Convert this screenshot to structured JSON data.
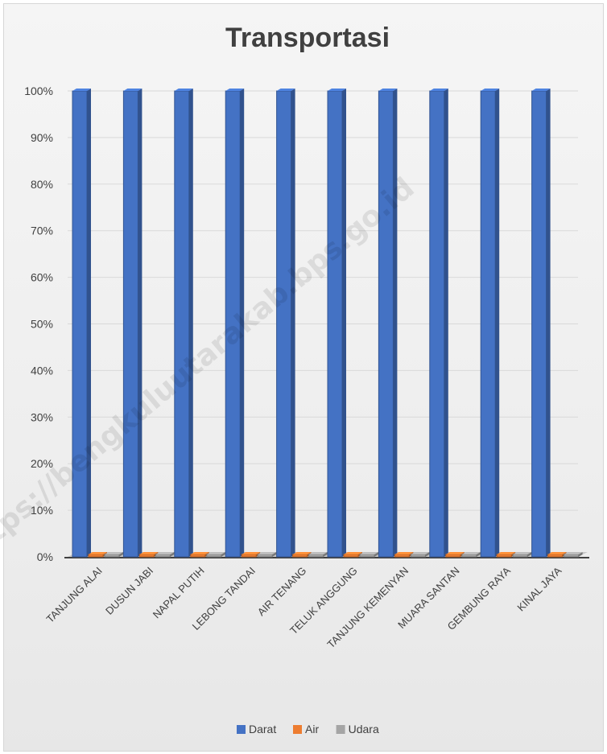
{
  "chart_data": {
    "type": "bar",
    "title": "Transportasi",
    "xlabel": "",
    "ylabel": "",
    "ylim": [
      0,
      100
    ],
    "y_ticks": [
      "0%",
      "10%",
      "20%",
      "30%",
      "40%",
      "50%",
      "60%",
      "70%",
      "80%",
      "90%",
      "100%"
    ],
    "categories": [
      "TANJUNG ALAI",
      "DUSUN JABI",
      "NAPAL PUTIH",
      "LEBONG TANDAI",
      "AIR TENANG",
      "TELUK ANGGUNG",
      "TANJUNG KEMENYAN",
      "MUARA SANTAN",
      "GEMBUNG RAYA",
      "KINAL JAYA"
    ],
    "series": [
      {
        "name": "Darat",
        "color": "#4472c4",
        "values": [
          100,
          100,
          100,
          100,
          100,
          100,
          100,
          100,
          100,
          100
        ]
      },
      {
        "name": "Air",
        "color": "#ed7d31",
        "values": [
          0,
          0,
          0,
          0,
          0,
          0,
          0,
          0,
          0,
          0
        ]
      },
      {
        "name": "Udara",
        "color": "#a5a5a5",
        "values": [
          0,
          0,
          0,
          0,
          0,
          0,
          0,
          0,
          0,
          0
        ]
      }
    ],
    "grid": true,
    "legend_position": "bottom",
    "watermark": "https://bengkuluutarakab.bps.go.id"
  }
}
